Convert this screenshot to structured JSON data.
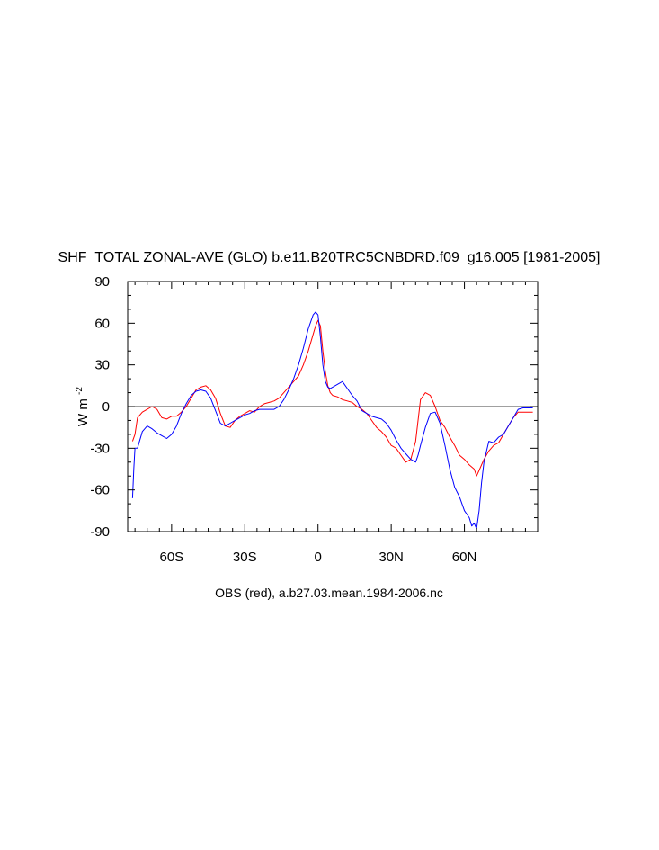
{
  "chart_data": {
    "type": "line",
    "title": "SHF_TOTAL ZONAL-AVE (GLO) b.e11.B20TRC5CNBDRD.f09_g16.005 [1981-2005]",
    "footnote": "OBS (red), a.b27.03.mean.1984-2006.nc",
    "ylabel": "W m",
    "ylabel_superscript": "-2",
    "xlabel": "",
    "xlim": [
      -78,
      90
    ],
    "ylim": [
      -90,
      90
    ],
    "x_ticks": [
      {
        "value": -60,
        "label": "60S"
      },
      {
        "value": -30,
        "label": "30S"
      },
      {
        "value": 0,
        "label": "0"
      },
      {
        "value": 30,
        "label": "30N"
      },
      {
        "value": 60,
        "label": "60N"
      }
    ],
    "y_ticks": [
      {
        "value": -90,
        "label": "-90"
      },
      {
        "value": -60,
        "label": "-60"
      },
      {
        "value": -30,
        "label": "-30"
      },
      {
        "value": 0,
        "label": "0"
      },
      {
        "value": 30,
        "label": "30"
      },
      {
        "value": 60,
        "label": "60"
      },
      {
        "value": 90,
        "label": "90"
      }
    ],
    "grid": false,
    "zero_line": true,
    "series": [
      {
        "color": "#ff0000",
        "x": [
          -76,
          -75,
          -74,
          -72,
          -70,
          -68,
          -66,
          -64,
          -62,
          -60,
          -58,
          -56,
          -54,
          -52,
          -50,
          -48,
          -46,
          -44,
          -42,
          -40,
          -38,
          -36,
          -34,
          -32,
          -30,
          -28,
          -26,
          -24,
          -22,
          -20,
          -18,
          -16,
          -14,
          -12,
          -10,
          -8,
          -6,
          -4,
          -2,
          -1,
          0,
          1,
          2,
          3,
          4,
          5,
          6,
          8,
          10,
          12,
          14,
          16,
          18,
          20,
          22,
          24,
          26,
          28,
          30,
          32,
          34,
          36,
          38,
          40,
          41,
          42,
          44,
          46,
          48,
          50,
          52,
          54,
          56,
          58,
          60,
          62,
          64,
          65,
          66,
          68,
          70,
          72,
          74,
          76,
          78,
          80,
          82,
          84,
          86,
          88
        ],
        "y": [
          -25,
          -20,
          -8,
          -4,
          -2,
          0,
          -2,
          -8,
          -9,
          -7,
          -7,
          -4,
          0,
          6,
          12,
          14,
          15,
          12,
          6,
          -5,
          -14,
          -15,
          -10,
          -7,
          -5,
          -3,
          -4,
          0,
          2,
          3,
          4,
          6,
          10,
          14,
          18,
          22,
          30,
          40,
          52,
          58,
          62,
          58,
          40,
          25,
          15,
          10,
          8,
          7,
          5,
          4,
          3,
          0,
          -2,
          -5,
          -10,
          -15,
          -18,
          -22,
          -28,
          -30,
          -35,
          -40,
          -38,
          -25,
          -10,
          5,
          10,
          8,
          0,
          -10,
          -15,
          -22,
          -28,
          -35,
          -38,
          -42,
          -45,
          -50,
          -46,
          -38,
          -32,
          -28,
          -26,
          -20,
          -14,
          -8,
          -4,
          -4,
          -4,
          -4
        ]
      },
      {
        "color": "#0000ff",
        "x": [
          -76,
          -75.5,
          -75,
          -74,
          -72,
          -70,
          -68,
          -66,
          -64,
          -62,
          -60,
          -58,
          -56,
          -54,
          -52,
          -50,
          -48,
          -46,
          -44,
          -42,
          -40,
          -38,
          -36,
          -34,
          -32,
          -30,
          -28,
          -26,
          -24,
          -22,
          -20,
          -18,
          -16,
          -14,
          -12,
          -10,
          -8,
          -6,
          -4,
          -2,
          -1,
          0,
          1,
          2,
          3,
          4,
          5,
          6,
          8,
          10,
          12,
          14,
          16,
          18,
          20,
          22,
          24,
          26,
          28,
          30,
          32,
          34,
          36,
          38,
          40,
          41,
          42,
          44,
          46,
          48,
          50,
          52,
          54,
          56,
          58,
          60,
          62,
          63,
          64,
          65,
          66,
          67,
          68,
          70,
          72,
          74,
          76,
          78,
          80,
          82,
          84,
          86,
          88
        ],
        "y": [
          -66,
          -45,
          -30,
          -30,
          -18,
          -14,
          -16,
          -19,
          -21,
          -23,
          -20,
          -14,
          -5,
          2,
          8,
          11,
          12,
          11,
          6,
          -3,
          -12,
          -14,
          -12,
          -10,
          -8,
          -6,
          -5,
          -3,
          -2,
          -2,
          -2,
          -2,
          0,
          5,
          12,
          20,
          30,
          42,
          56,
          66,
          68,
          66,
          50,
          30,
          18,
          14,
          13,
          14,
          16,
          18,
          13,
          8,
          4,
          -3,
          -5,
          -7,
          -8,
          -9,
          -12,
          -17,
          -24,
          -30,
          -34,
          -38,
          -40,
          -35,
          -28,
          -15,
          -5,
          -4,
          -12,
          -28,
          -45,
          -58,
          -65,
          -75,
          -80,
          -86,
          -84,
          -88,
          -75,
          -55,
          -40,
          -25,
          -26,
          -22,
          -20,
          -14,
          -8,
          -2,
          -1,
          -1,
          -1
        ]
      }
    ]
  }
}
